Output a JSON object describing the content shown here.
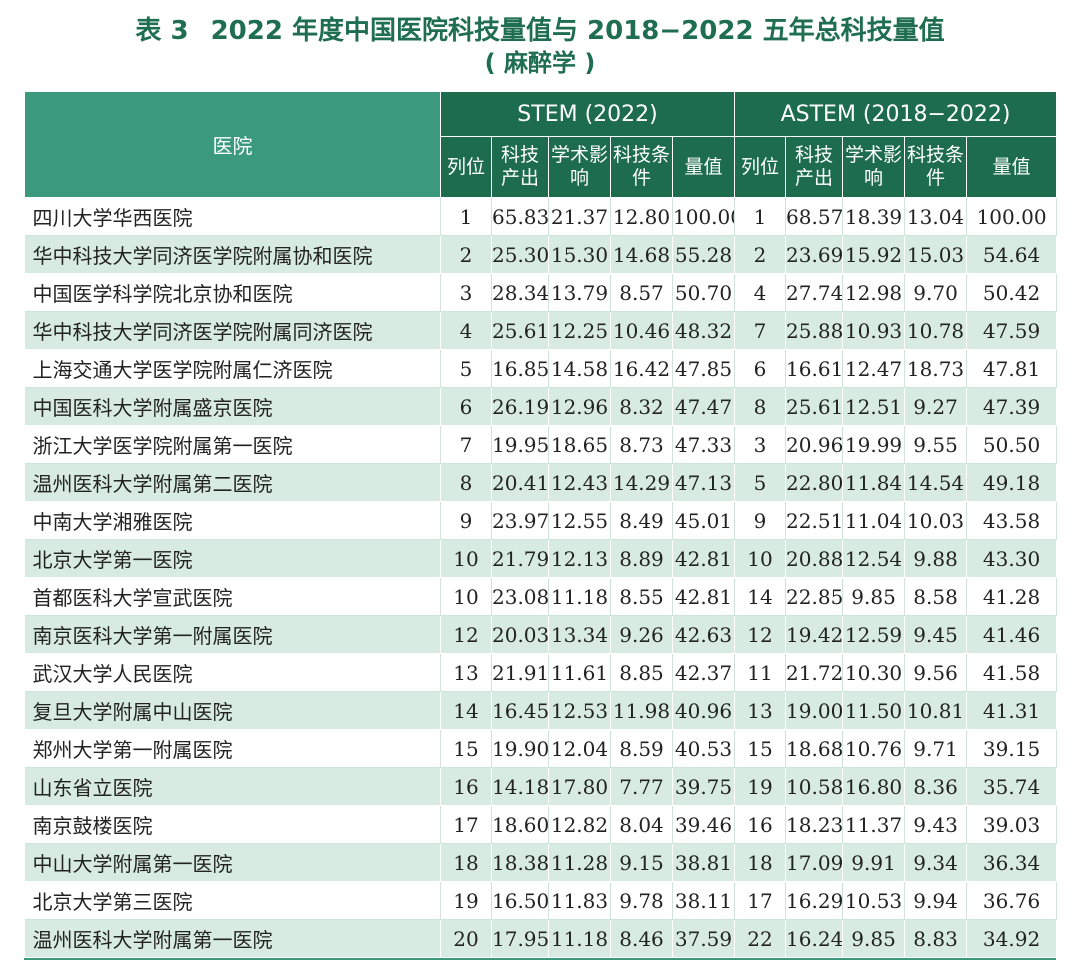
{
  "title": {
    "label": "表 3",
    "line1": "2022 年度中国医院科技量值与 2018−2022 五年总科技量值",
    "line2": "( 麻醉学 )"
  },
  "headers": {
    "hospital": "医院",
    "stem": "STEM (2022)",
    "astem": "ASTEM (2018−2022)",
    "rank": "列位",
    "output": "科技产出",
    "influence": "学术影响",
    "condition": "科技条件",
    "value": "量值"
  },
  "rows": [
    {
      "name": "四川大学华西医院",
      "s": [
        "1",
        "65.83",
        "21.37",
        "12.80",
        "100.00"
      ],
      "a": [
        "1",
        "68.57",
        "18.39",
        "13.04",
        "100.00"
      ]
    },
    {
      "name": "华中科技大学同济医学院附属协和医院",
      "s": [
        "2",
        "25.30",
        "15.30",
        "14.68",
        "55.28"
      ],
      "a": [
        "2",
        "23.69",
        "15.92",
        "15.03",
        "54.64"
      ]
    },
    {
      "name": "中国医学科学院北京协和医院",
      "s": [
        "3",
        "28.34",
        "13.79",
        "8.57",
        "50.70"
      ],
      "a": [
        "4",
        "27.74",
        "12.98",
        "9.70",
        "50.42"
      ]
    },
    {
      "name": "华中科技大学同济医学院附属同济医院",
      "s": [
        "4",
        "25.61",
        "12.25",
        "10.46",
        "48.32"
      ],
      "a": [
        "7",
        "25.88",
        "10.93",
        "10.78",
        "47.59"
      ]
    },
    {
      "name": "上海交通大学医学院附属仁济医院",
      "s": [
        "5",
        "16.85",
        "14.58",
        "16.42",
        "47.85"
      ],
      "a": [
        "6",
        "16.61",
        "12.47",
        "18.73",
        "47.81"
      ]
    },
    {
      "name": "中国医科大学附属盛京医院",
      "s": [
        "6",
        "26.19",
        "12.96",
        "8.32",
        "47.47"
      ],
      "a": [
        "8",
        "25.61",
        "12.51",
        "9.27",
        "47.39"
      ]
    },
    {
      "name": "浙江大学医学院附属第一医院",
      "s": [
        "7",
        "19.95",
        "18.65",
        "8.73",
        "47.33"
      ],
      "a": [
        "3",
        "20.96",
        "19.99",
        "9.55",
        "50.50"
      ]
    },
    {
      "name": "温州医科大学附属第二医院",
      "s": [
        "8",
        "20.41",
        "12.43",
        "14.29",
        "47.13"
      ],
      "a": [
        "5",
        "22.80",
        "11.84",
        "14.54",
        "49.18"
      ]
    },
    {
      "name": "中南大学湘雅医院",
      "s": [
        "9",
        "23.97",
        "12.55",
        "8.49",
        "45.01"
      ],
      "a": [
        "9",
        "22.51",
        "11.04",
        "10.03",
        "43.58"
      ]
    },
    {
      "name": "北京大学第一医院",
      "s": [
        "10",
        "21.79",
        "12.13",
        "8.89",
        "42.81"
      ],
      "a": [
        "10",
        "20.88",
        "12.54",
        "9.88",
        "43.30"
      ]
    },
    {
      "name": "首都医科大学宣武医院",
      "s": [
        "10",
        "23.08",
        "11.18",
        "8.55",
        "42.81"
      ],
      "a": [
        "14",
        "22.85",
        "9.85",
        "8.58",
        "41.28"
      ]
    },
    {
      "name": "南京医科大学第一附属医院",
      "s": [
        "12",
        "20.03",
        "13.34",
        "9.26",
        "42.63"
      ],
      "a": [
        "12",
        "19.42",
        "12.59",
        "9.45",
        "41.46"
      ]
    },
    {
      "name": "武汉大学人民医院",
      "s": [
        "13",
        "21.91",
        "11.61",
        "8.85",
        "42.37"
      ],
      "a": [
        "11",
        "21.72",
        "10.30",
        "9.56",
        "41.58"
      ]
    },
    {
      "name": "复旦大学附属中山医院",
      "s": [
        "14",
        "16.45",
        "12.53",
        "11.98",
        "40.96"
      ],
      "a": [
        "13",
        "19.00",
        "11.50",
        "10.81",
        "41.31"
      ]
    },
    {
      "name": "郑州大学第一附属医院",
      "s": [
        "15",
        "19.90",
        "12.04",
        "8.59",
        "40.53"
      ],
      "a": [
        "15",
        "18.68",
        "10.76",
        "9.71",
        "39.15"
      ]
    },
    {
      "name": "山东省立医院",
      "s": [
        "16",
        "14.18",
        "17.80",
        "7.77",
        "39.75"
      ],
      "a": [
        "19",
        "10.58",
        "16.80",
        "8.36",
        "35.74"
      ]
    },
    {
      "name": "南京鼓楼医院",
      "s": [
        "17",
        "18.60",
        "12.82",
        "8.04",
        "39.46"
      ],
      "a": [
        "16",
        "18.23",
        "11.37",
        "9.43",
        "39.03"
      ]
    },
    {
      "name": "中山大学附属第一医院",
      "s": [
        "18",
        "18.38",
        "11.28",
        "9.15",
        "38.81"
      ],
      "a": [
        "18",
        "17.09",
        "9.91",
        "9.34",
        "36.34"
      ]
    },
    {
      "name": "北京大学第三医院",
      "s": [
        "19",
        "16.50",
        "11.83",
        "9.78",
        "38.11"
      ],
      "a": [
        "17",
        "16.29",
        "10.53",
        "9.94",
        "36.76"
      ]
    },
    {
      "name": "温州医科大学附属第一医院",
      "s": [
        "20",
        "17.95",
        "11.18",
        "8.46",
        "37.59"
      ],
      "a": [
        "22",
        "16.24",
        "9.85",
        "8.83",
        "34.92"
      ]
    }
  ]
}
